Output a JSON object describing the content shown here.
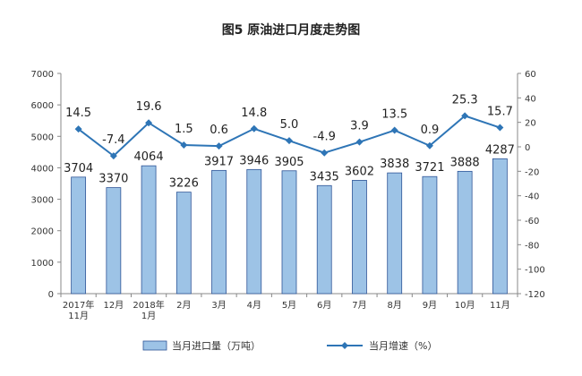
{
  "chart_data": {
    "type": "bar",
    "title": "图5  原油进口月度走势图",
    "categories": [
      [
        "2017年",
        "11月"
      ],
      [
        "12月"
      ],
      [
        "2018年",
        "1月"
      ],
      [
        "2月"
      ],
      [
        "3月"
      ],
      [
        "4月"
      ],
      [
        "5月"
      ],
      [
        "6月"
      ],
      [
        "7月"
      ],
      [
        "8月"
      ],
      [
        "9月"
      ],
      [
        "10月"
      ],
      [
        "11月"
      ]
    ],
    "series": [
      {
        "name": "当月进口量（万吨）",
        "kind": "bar",
        "axis": "left",
        "color": "#9DC3E6",
        "values": [
          3704,
          3370,
          4064,
          3226,
          3917,
          3946,
          3905,
          3435,
          3602,
          3838,
          3721,
          3888,
          4287
        ]
      },
      {
        "name": "当月增速（%）",
        "kind": "line",
        "axis": "right",
        "color": "#2E75B6",
        "values": [
          14.5,
          -7.4,
          19.6,
          1.5,
          0.6,
          14.8,
          5.0,
          -4.9,
          3.9,
          13.5,
          0.9,
          25.3,
          15.7
        ]
      }
    ],
    "left_axis": {
      "ylim": [
        0,
        7000
      ],
      "ticks": [
        0,
        1000,
        2000,
        3000,
        4000,
        5000,
        6000,
        7000
      ]
    },
    "right_axis": {
      "ylim": [
        -120,
        60
      ],
      "ticks": [
        -120,
        -100,
        -80,
        -60,
        -40,
        -20,
        0,
        20,
        40,
        60
      ]
    },
    "legend_position": "bottom",
    "grid": false
  }
}
